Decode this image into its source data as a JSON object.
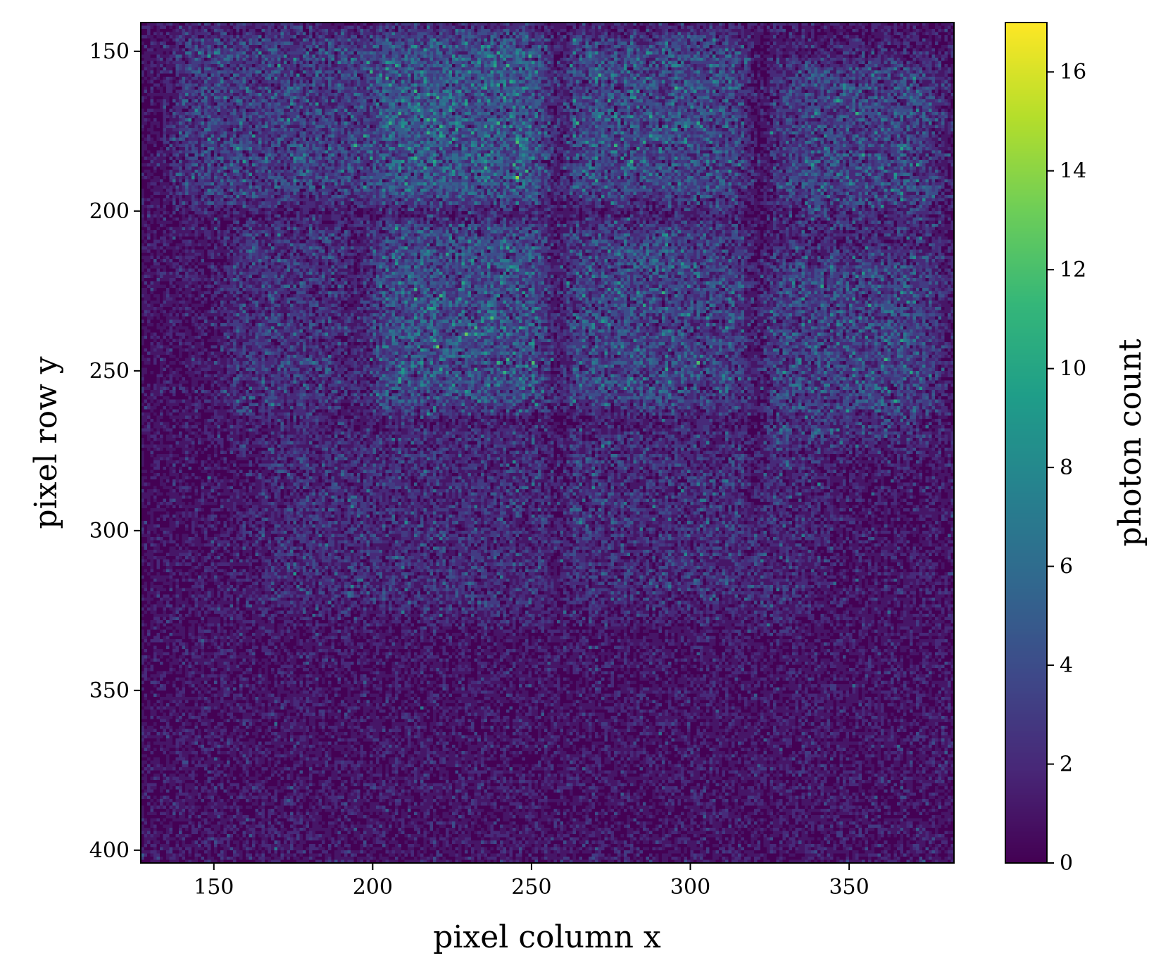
{
  "chart_data": {
    "type": "heatmap",
    "title": "",
    "xlabel": "pixel column x",
    "ylabel": "pixel row y",
    "xlim": [
      127,
      383
    ],
    "ylim": [
      404,
      141
    ],
    "x_ticks": [
      150,
      200,
      250,
      300,
      350
    ],
    "y_ticks": [
      150,
      200,
      250,
      300,
      350,
      400
    ],
    "colorbar": {
      "label": "photon count",
      "range": [
        0,
        17
      ],
      "ticks": [
        0,
        2,
        4,
        6,
        8,
        10,
        12,
        14,
        16
      ]
    },
    "colormap": "viridis",
    "grid": false,
    "description_of_field": "Poisson photon-count noise image; brighter rectangular tiles in upper region separated by dark gaps at x≈258, x≈322 and y≈200, y≈265"
  },
  "colors": {
    "viridis": [
      "#440154",
      "#482878",
      "#3e4989",
      "#31688e",
      "#26828e",
      "#1f9e89",
      "#35b779",
      "#6ece58",
      "#b5de2b",
      "#fde725"
    ]
  }
}
